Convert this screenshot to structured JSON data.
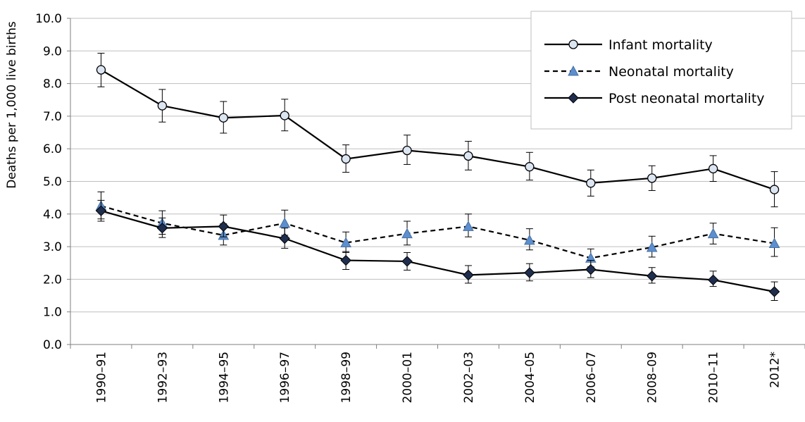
{
  "chart_data": {
    "type": "line",
    "title": "",
    "xlabel": "",
    "ylabel": "Deaths per 1,000 live births",
    "ylim": [
      0,
      10
    ],
    "ytick_step": 1,
    "ytick_labels": [
      "0.0",
      "1.0",
      "2.0",
      "3.0",
      "4.0",
      "5.0",
      "6.0",
      "7.0",
      "8.0",
      "9.0",
      "10.0"
    ],
    "grid": "horizontal",
    "legend_position": "top-right",
    "categories": [
      "1990–91",
      "1992–93",
      "1994–95",
      "1996–97",
      "1998–99",
      "2000–01",
      "2002–03",
      "2004–05",
      "2006–07",
      "2008–09",
      "2010–11",
      "2012*"
    ],
    "series": [
      {
        "name": "Infant mortality",
        "marker": "circle",
        "line_style": "solid",
        "marker_color": "#dce6f2",
        "values": [
          8.42,
          7.32,
          6.95,
          7.02,
          5.69,
          5.95,
          5.78,
          5.45,
          4.95,
          5.1,
          5.39,
          4.75
        ],
        "error_low": [
          7.9,
          6.82,
          6.48,
          6.55,
          5.28,
          5.52,
          5.35,
          5.04,
          4.55,
          4.72,
          5.0,
          4.22
        ],
        "error_high": [
          8.93,
          7.82,
          7.45,
          7.52,
          6.12,
          6.42,
          6.23,
          5.89,
          5.35,
          5.48,
          5.79,
          5.3
        ]
      },
      {
        "name": "Neonatal mortality",
        "marker": "triangle",
        "line_style": "dashed",
        "marker_color": "#5b8fd0",
        "values": [
          4.25,
          3.72,
          3.35,
          3.72,
          3.12,
          3.4,
          3.62,
          3.2,
          2.65,
          2.98,
          3.4,
          3.1
        ],
        "error_low": [
          3.85,
          3.38,
          3.05,
          3.35,
          2.82,
          3.05,
          3.3,
          2.9,
          2.38,
          2.68,
          3.08,
          2.7
        ],
        "error_high": [
          4.68,
          4.1,
          3.7,
          4.12,
          3.45,
          3.78,
          4.0,
          3.55,
          2.93,
          3.32,
          3.72,
          3.58
        ]
      },
      {
        "name": "Post neonatal mortality",
        "marker": "diamond",
        "line_style": "solid",
        "marker_color": "#1f2d4e",
        "values": [
          4.1,
          3.57,
          3.62,
          3.25,
          2.58,
          2.55,
          2.13,
          2.2,
          2.3,
          2.1,
          1.98,
          1.62
        ],
        "error_low": [
          3.78,
          3.28,
          3.3,
          2.95,
          2.3,
          2.28,
          1.88,
          1.95,
          2.05,
          1.88,
          1.78,
          1.35
        ],
        "error_high": [
          4.42,
          3.88,
          3.97,
          3.57,
          2.85,
          2.82,
          2.42,
          2.48,
          2.58,
          2.36,
          2.25,
          1.92
        ]
      }
    ]
  }
}
